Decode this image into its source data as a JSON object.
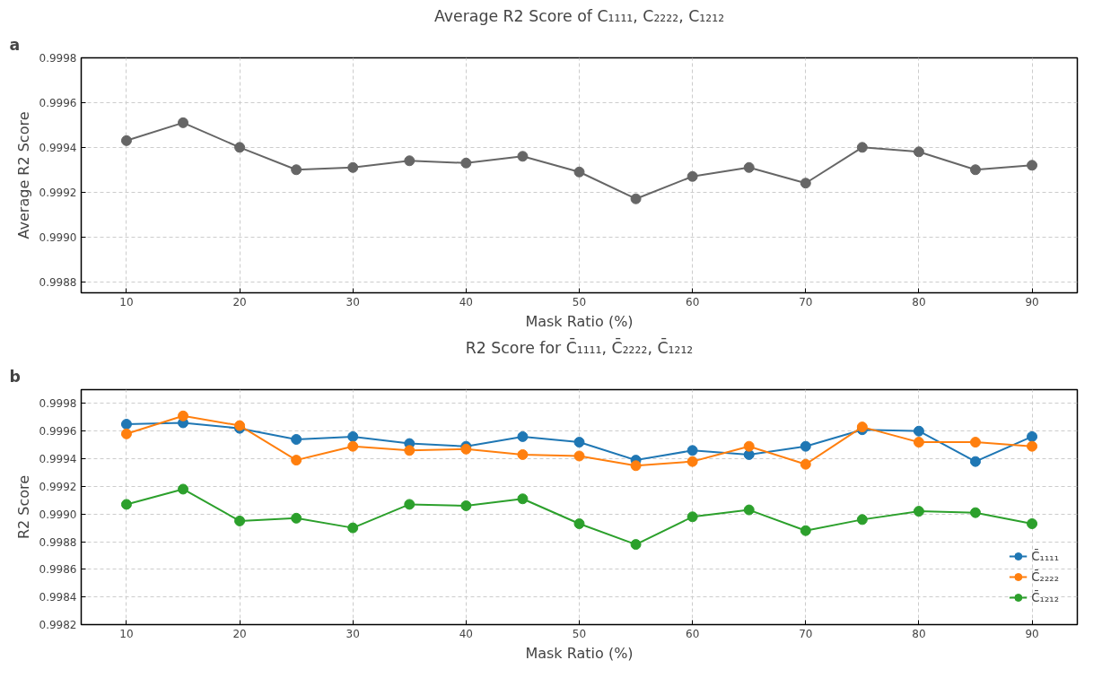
{
  "chart_data": [
    {
      "type": "line",
      "title": "Average R2 Score of C₁₁₁₁, C₂₂₂₂, C₁₂₁₂",
      "xlabel": "Mask Ratio (%)",
      "ylabel": "Average R2 Score",
      "annotations": [
        "a"
      ],
      "x": [
        10,
        15,
        20,
        25,
        30,
        35,
        40,
        45,
        50,
        55,
        60,
        65,
        70,
        75,
        80,
        85,
        90
      ],
      "series": [
        {
          "color": "#666666",
          "values": [
            0.99943,
            0.99951,
            0.9994,
            0.9993,
            0.99931,
            0.99934,
            0.99933,
            0.99936,
            0.99929,
            0.99917,
            0.99927,
            0.99931,
            0.99924,
            0.9994,
            0.99938,
            0.9993,
            0.99932
          ]
        }
      ],
      "xlim": [
        6,
        94
      ],
      "xticks": [
        10,
        20,
        30,
        40,
        50,
        60,
        70,
        80,
        90
      ],
      "ylim": [
        0.99875,
        0.9998
      ],
      "yticks": [
        0.9988,
        {
          "value": 0.999,
          "label": "0.9990"
        },
        0.9992,
        0.9994,
        0.9996,
        0.9998
      ],
      "grid": true,
      "marker": "circle",
      "line_style": "solid"
    },
    {
      "type": "line",
      "title": "R2 Score for C̄₁₁₁₁, C̄₂₂₂₂, C̄₁₂₁₂",
      "xlabel": "Mask Ratio (%)",
      "ylabel": "R2 Score",
      "annotations": [
        "b"
      ],
      "x": [
        10,
        15,
        20,
        25,
        30,
        35,
        40,
        45,
        50,
        55,
        60,
        65,
        70,
        75,
        80,
        85,
        90
      ],
      "series": [
        {
          "name": "C̄₁₁₁₁",
          "color": "#1f77b4",
          "values": [
            0.99965,
            0.99966,
            0.99962,
            0.99954,
            0.99956,
            0.99951,
            0.99949,
            0.99956,
            0.99952,
            0.99939,
            0.99946,
            0.99943,
            0.99949,
            0.99961,
            0.9996,
            0.99938,
            0.99956
          ]
        },
        {
          "name": "C̄₂₂₂₂",
          "color": "#ff7f0e",
          "values": [
            0.99958,
            0.99971,
            0.99964,
            0.99939,
            0.99949,
            0.99946,
            0.99947,
            0.99943,
            0.99942,
            0.99935,
            0.99938,
            0.99949,
            0.99936,
            0.99963,
            0.99952,
            0.99952,
            0.99949
          ]
        },
        {
          "name": "C̄₁₂₁₂",
          "color": "#2ca02c",
          "values": [
            0.99907,
            0.99918,
            0.99895,
            0.99897,
            0.9989,
            0.99907,
            0.99906,
            0.99911,
            0.99893,
            0.99878,
            0.99898,
            0.99903,
            0.99888,
            0.99896,
            0.99902,
            0.99901,
            0.99893
          ]
        }
      ],
      "xlim": [
        6,
        94
      ],
      "xticks": [
        10,
        20,
        30,
        40,
        50,
        60,
        70,
        80,
        90
      ],
      "ylim": [
        0.9982,
        0.9999
      ],
      "yticks": [
        0.9982,
        0.9984,
        0.9986,
        0.9988,
        {
          "value": 0.999,
          "label": "0.9990"
        },
        0.9992,
        0.9994,
        0.9996,
        0.9998
      ],
      "grid": true,
      "legend": "bottom right",
      "marker": "circle",
      "line_style": "solid"
    }
  ]
}
